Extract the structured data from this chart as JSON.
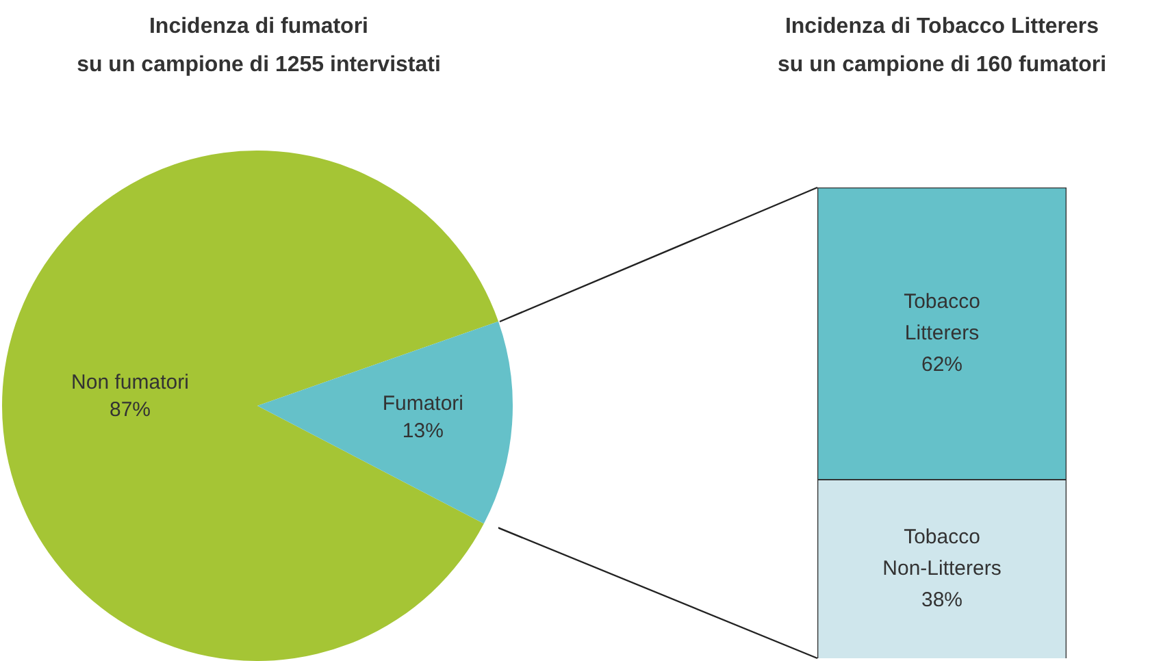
{
  "chart_data": [
    {
      "type": "pie",
      "title": "Incidenza di fumatori\nsu un campione di 1255 intervistati",
      "categories": [
        "Non fumatori",
        "Fumatori"
      ],
      "values": [
        87,
        13
      ],
      "colors": [
        "#a5c535",
        "#65c1c9"
      ],
      "value_labels": [
        "87%",
        "13%"
      ]
    },
    {
      "type": "bar",
      "title": "Incidenza di Tobacco Litterers\nsu un campione di 160 fumatori",
      "categories": [
        null
      ],
      "stacked": true,
      "ylim": [
        0,
        100
      ],
      "tick_labels": false,
      "series": [
        {
          "name": "Tobacco Non-Litterers",
          "color": "#cfe6ec",
          "values": [
            38
          ],
          "value_labels": [
            "38%"
          ]
        },
        {
          "name": "Tobacco Litterers",
          "color": "#65c1c9",
          "values": [
            62
          ],
          "value_labels": [
            "62%"
          ]
        }
      ]
    }
  ]
}
